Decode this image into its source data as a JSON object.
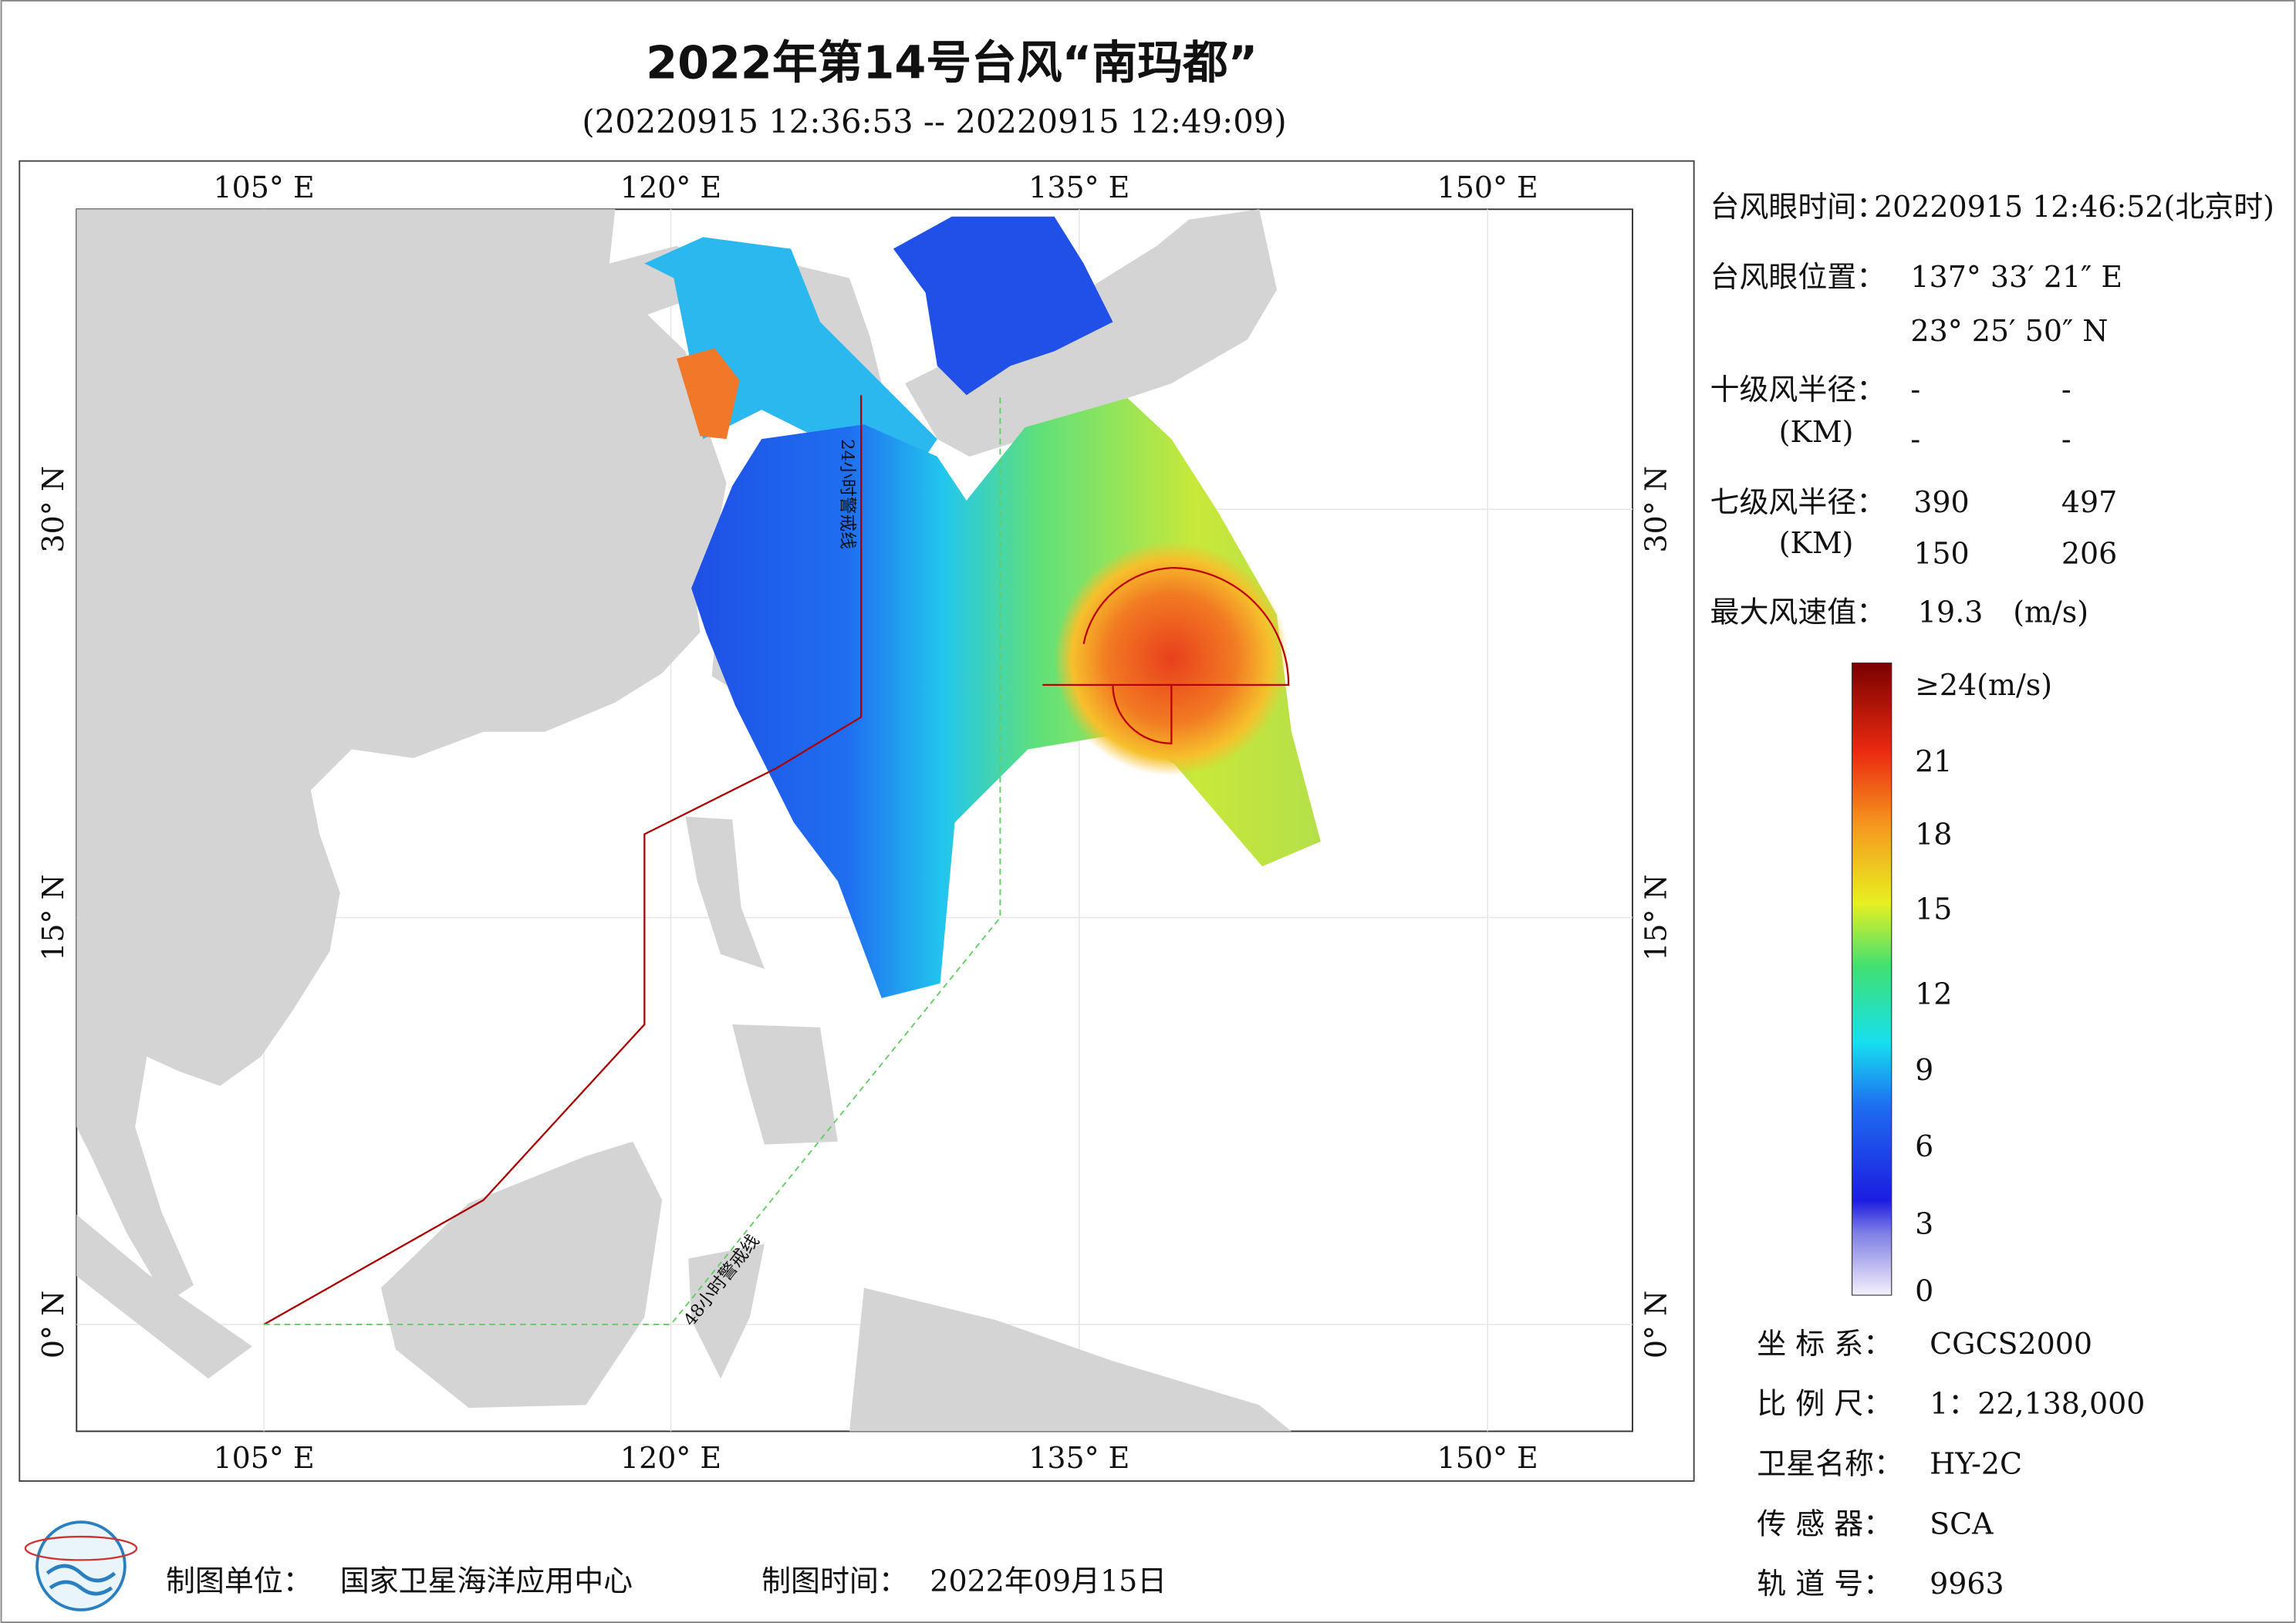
{
  "title": "2022年第14号台风“南玛都”",
  "subtitle": "(20220915 12:36:53 -- 20220915 12:49:09)",
  "map": {
    "lon_labels": [
      "105° E",
      "120° E",
      "135° E",
      "150° E"
    ],
    "lat_labels": [
      "0° N",
      "15° N",
      "30° N"
    ],
    "line_24h": "24小时警戒线",
    "line_48h": "48小时警戒线"
  },
  "info": {
    "eye_time_label": "台风眼时间：",
    "eye_time": "20220915 12:46:52(北京时)",
    "eye_pos_label": "台风眼位置：",
    "eye_lon": "137° 33′ 21″ E",
    "eye_lat": "23° 25′ 50″ N",
    "r10_label": "十级风半径：",
    "r10": [
      "-",
      "-",
      "-",
      "-"
    ],
    "km": "(KM)",
    "r7_label": "七级风半径：",
    "r7": [
      390,
      497,
      150,
      206
    ],
    "max_wind_label": "最大风速值：",
    "max_wind": 19.3,
    "max_wind_unit": "(m/s)"
  },
  "colorbar": {
    "labels": [
      "≥24(m/s)",
      21,
      18,
      15,
      12,
      9,
      6,
      3,
      0
    ]
  },
  "meta": [
    {
      "label": "坐 标 系：",
      "value": "CGCS2000"
    },
    {
      "label": "比 例 尺：",
      "value": "1：22,138,000"
    },
    {
      "label": "卫星名称：",
      "value": "HY-2C"
    },
    {
      "label": "传 感 器：",
      "value": "SCA"
    },
    {
      "label": "轨 道 号：",
      "value": 9963
    }
  ],
  "footer": {
    "unit_label": "制图单位：",
    "unit": "国家卫星海洋应用中心",
    "time_label": "制图时间：",
    "time": "2022年09月15日"
  }
}
